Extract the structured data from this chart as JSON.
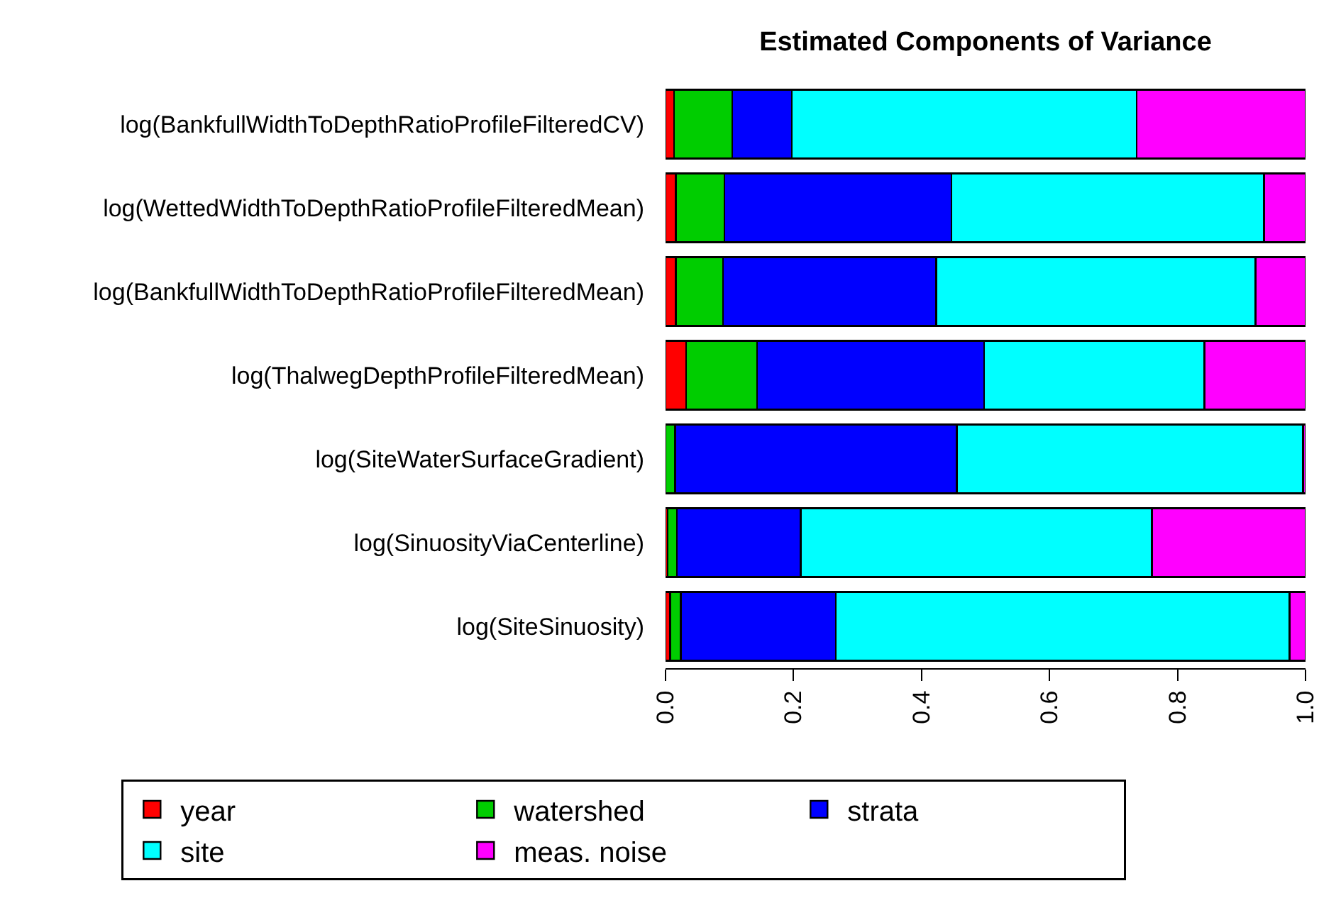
{
  "chart_data": {
    "type": "bar",
    "orientation": "horizontal",
    "stacked": true,
    "title": "Estimated Components of Variance",
    "categories": [
      "log(BankfullWidthToDepthRatioProfileFilteredCV)",
      "log(WettedWidthToDepthRatioProfileFilteredMean)",
      "log(BankfullWidthToDepthRatioProfileFilteredMean)",
      "log(ThalwegDepthProfileFilteredMean)",
      "log(SiteWaterSurfaceGradient)",
      "log(SinuosityViaCenterline)",
      "log(SiteSinuosity)"
    ],
    "series": [
      {
        "name": "year",
        "color": "#ff0000",
        "values": [
          0.013,
          0.016,
          0.016,
          0.032,
          0.0,
          0.003,
          0.007
        ]
      },
      {
        "name": "watershed",
        "color": "#00cd00",
        "values": [
          0.091,
          0.076,
          0.074,
          0.111,
          0.015,
          0.015,
          0.017
        ]
      },
      {
        "name": "strata",
        "color": "#0000ff",
        "values": [
          0.093,
          0.355,
          0.333,
          0.355,
          0.44,
          0.193,
          0.242
        ]
      },
      {
        "name": "site",
        "color": "#00ffff",
        "values": [
          0.539,
          0.488,
          0.499,
          0.344,
          0.541,
          0.549,
          0.709
        ]
      },
      {
        "name": "meas. noise",
        "color": "#ff00ff",
        "values": [
          0.264,
          0.065,
          0.078,
          0.158,
          0.004,
          0.24,
          0.025
        ]
      }
    ],
    "xlim": [
      0,
      1
    ],
    "xticks": [
      {
        "value": 0,
        "label": "0.0"
      },
      {
        "value": 0.2,
        "label": "0.2"
      },
      {
        "value": 0.4,
        "label": "0.4"
      },
      {
        "value": 0.6,
        "label": "0.6"
      },
      {
        "value": 0.8,
        "label": "0.8"
      },
      {
        "value": 1,
        "label": "1.0"
      }
    ],
    "legend": "bottom"
  }
}
